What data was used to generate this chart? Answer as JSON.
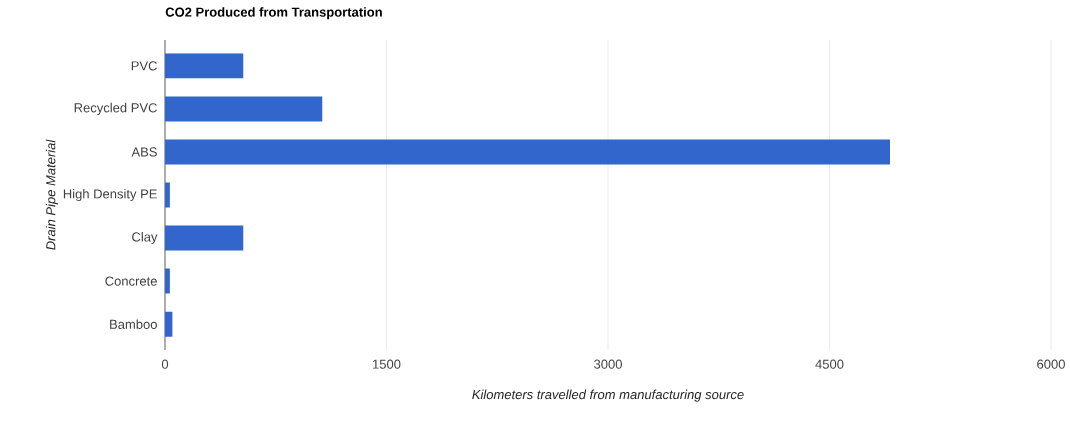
{
  "chart_data": {
    "type": "bar",
    "orientation": "horizontal",
    "title": "CO2 Produced from Transportation",
    "xlabel": "Kilometers travelled from manufacturing source",
    "ylabel": "Drain Pipe Material",
    "categories": [
      "PVC",
      "Recycled PVC",
      "ABS",
      "High Density PE",
      "Clay",
      "Concrete",
      "Bamboo"
    ],
    "values": [
      530,
      1065,
      4910,
      33,
      530,
      33,
      50
    ],
    "color": "#3366cc",
    "xlim": [
      0,
      6000
    ],
    "xticks": [
      0,
      1500,
      3000,
      4500,
      6000
    ],
    "grid": "x"
  }
}
